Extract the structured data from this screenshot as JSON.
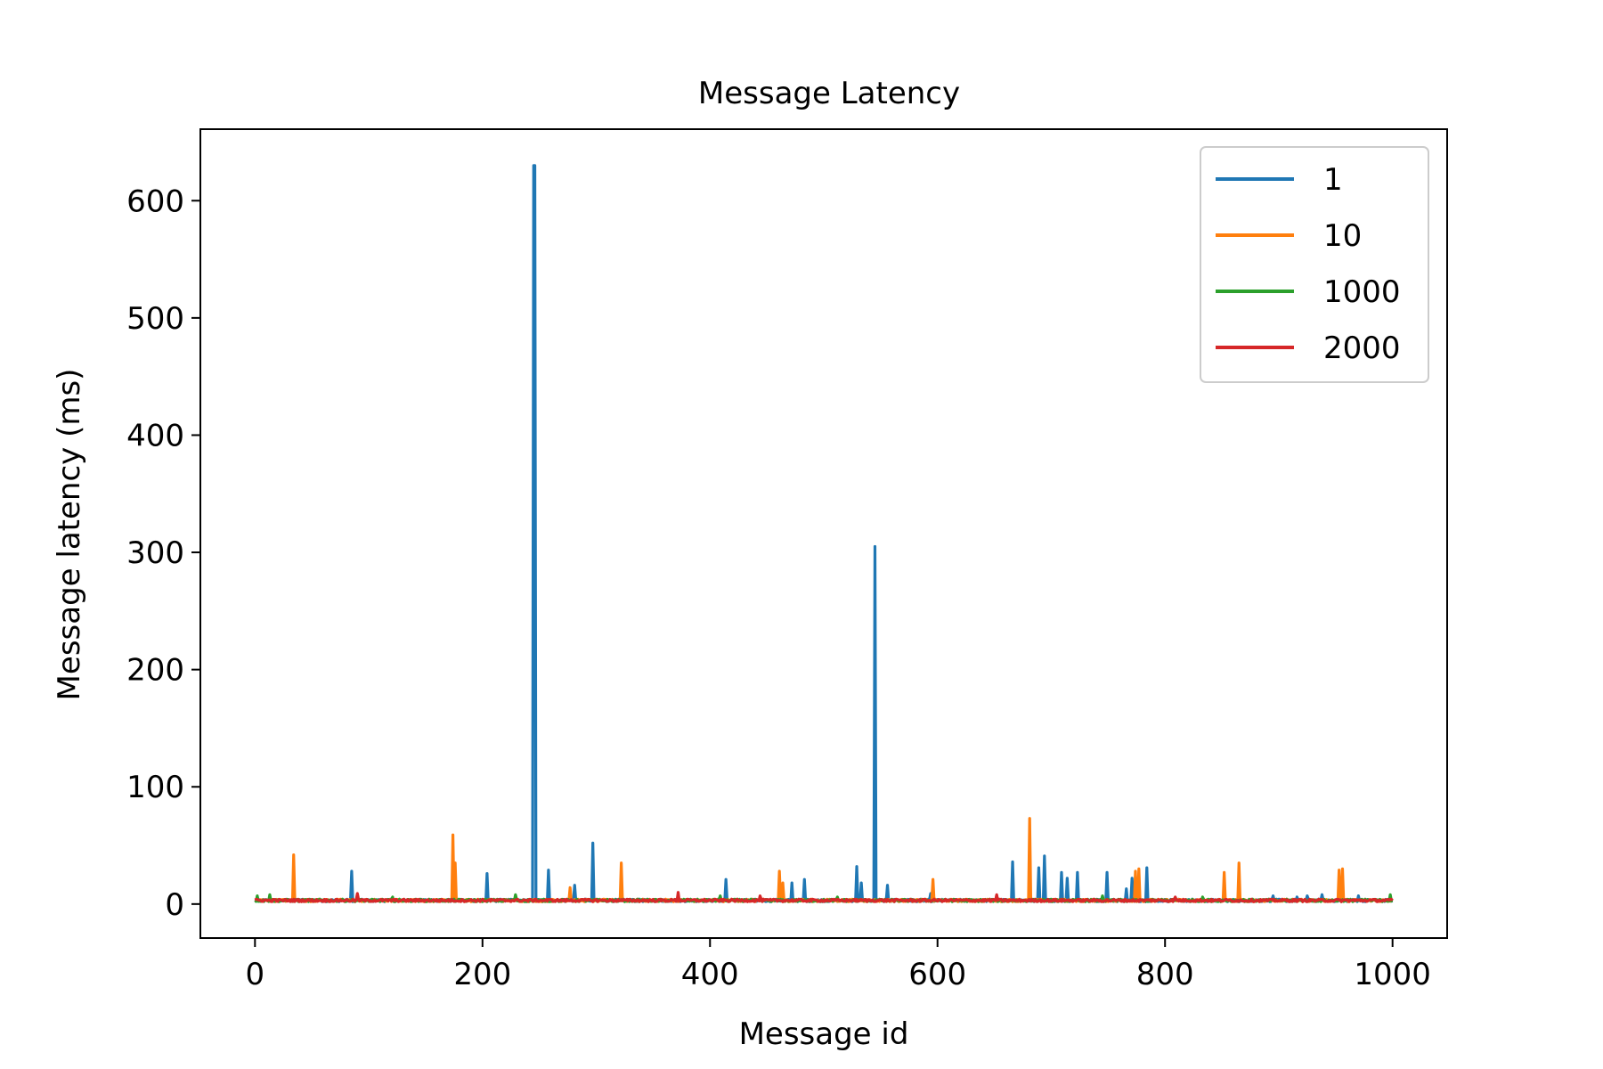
{
  "chart_data": {
    "type": "line",
    "title": "Message Latency",
    "xlabel": "Message id",
    "ylabel": "Message latency (ms)",
    "xlim": [
      -48,
      1048
    ],
    "ylim": [
      -29,
      661
    ],
    "xticks": [
      0,
      200,
      400,
      600,
      800,
      1000
    ],
    "yticks": [
      0,
      100,
      200,
      300,
      400,
      500,
      600
    ],
    "xtick_labels": [
      "0",
      "200",
      "400",
      "600",
      "800",
      "1000"
    ],
    "ytick_labels": [
      "0",
      "100",
      "200",
      "300",
      "400",
      "500",
      "600"
    ],
    "grid": false,
    "legend_position": "top-right",
    "baseline": 2,
    "series": [
      {
        "name": "1",
        "color": "#1f77b4",
        "spikes": [
          [
            85,
            28
          ],
          [
            204,
            26
          ],
          [
            245,
            630
          ],
          [
            246,
            630
          ],
          [
            258,
            29
          ],
          [
            281,
            16
          ],
          [
            297,
            52
          ],
          [
            414,
            21
          ],
          [
            472,
            18
          ],
          [
            483,
            21
          ],
          [
            529,
            32
          ],
          [
            533,
            18
          ],
          [
            545,
            305
          ],
          [
            556,
            16
          ],
          [
            594,
            9
          ],
          [
            666,
            36
          ],
          [
            689,
            31
          ],
          [
            694,
            41
          ],
          [
            709,
            27
          ],
          [
            714,
            22
          ],
          [
            723,
            27
          ],
          [
            749,
            27
          ],
          [
            766,
            13
          ],
          [
            771,
            22
          ],
          [
            784,
            31
          ],
          [
            895,
            7
          ],
          [
            916,
            6
          ],
          [
            925,
            7
          ],
          [
            938,
            8
          ],
          [
            970,
            7
          ]
        ]
      },
      {
        "name": "10",
        "color": "#ff7f0e",
        "spikes": [
          [
            34,
            42
          ],
          [
            174,
            59
          ],
          [
            176,
            35
          ],
          [
            277,
            14
          ],
          [
            322,
            35
          ],
          [
            461,
            28
          ],
          [
            464,
            18
          ],
          [
            596,
            21
          ],
          [
            681,
            73
          ],
          [
            774,
            28
          ],
          [
            777,
            30
          ],
          [
            852,
            27
          ],
          [
            865,
            35
          ],
          [
            953,
            29
          ],
          [
            956,
            30
          ]
        ]
      },
      {
        "name": "1000",
        "color": "#2ca02c",
        "spikes": [
          [
            2,
            7
          ],
          [
            13,
            8
          ],
          [
            121,
            6
          ],
          [
            229,
            8
          ],
          [
            409,
            7
          ],
          [
            512,
            6
          ],
          [
            745,
            7
          ],
          [
            833,
            6
          ],
          [
            998,
            8
          ]
        ]
      },
      {
        "name": "2000",
        "color": "#d62728",
        "spikes": [
          [
            90,
            9
          ],
          [
            372,
            10
          ],
          [
            444,
            7
          ],
          [
            652,
            8
          ],
          [
            809,
            6
          ]
        ]
      }
    ]
  }
}
